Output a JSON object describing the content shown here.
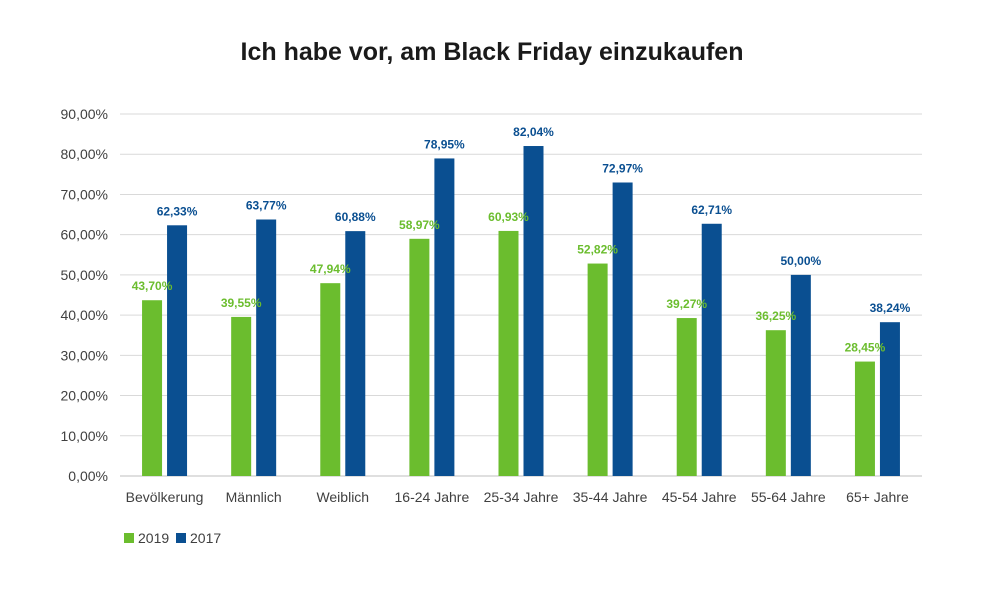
{
  "chart_data": {
    "type": "bar",
    "title": "Ich habe vor, am Black Friday einzukaufen",
    "xlabel": "",
    "ylabel": "",
    "categories": [
      "Bevölkerung",
      "Männlich",
      "Weiblich",
      "16-24 Jahre",
      "25-34 Jahre",
      "35-44 Jahre",
      "45-54 Jahre",
      "55-64 Jahre",
      "65+ Jahre"
    ],
    "series": [
      {
        "name": "2019",
        "color": "#6bbd2e",
        "values": [
          43.7,
          39.55,
          47.94,
          58.97,
          60.93,
          52.82,
          39.27,
          36.25,
          28.45
        ],
        "labels": [
          "43,70%",
          "39,55%",
          "47,94%",
          "58,97%",
          "60,93%",
          "52,82%",
          "39,27%",
          "36,25%",
          "28,45%"
        ]
      },
      {
        "name": "2017",
        "color": "#0a4f91",
        "values": [
          62.33,
          63.77,
          60.88,
          78.95,
          82.04,
          72.97,
          62.71,
          50.0,
          38.24
        ],
        "labels": [
          "62,33%",
          "63,77%",
          "60,88%",
          "78,95%",
          "82,04%",
          "72,97%",
          "62,71%",
          "50,00%",
          "38,24%"
        ]
      }
    ],
    "ylim": [
      0,
      90
    ],
    "yticks": [
      0,
      10,
      20,
      30,
      40,
      50,
      60,
      70,
      80,
      90
    ],
    "ytick_labels": [
      "0,00%",
      "10,00%",
      "20,00%",
      "30,00%",
      "40,00%",
      "50,00%",
      "60,00%",
      "70,00%",
      "80,00%",
      "90,00%"
    ],
    "grid": true,
    "legend_position": "bottom-left"
  }
}
